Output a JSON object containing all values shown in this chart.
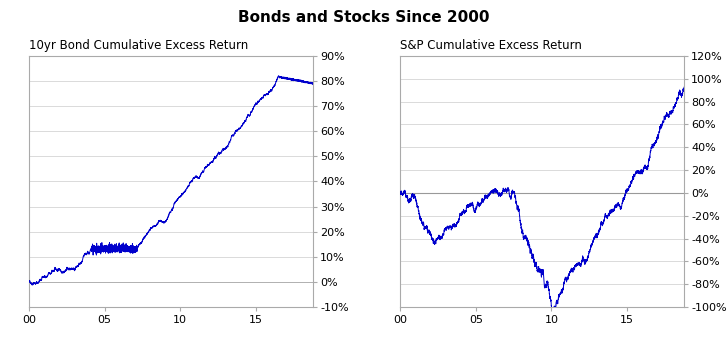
{
  "title": "Bonds and Stocks Since 2000",
  "left_title": "10yr Bond Cumulative Excess Return",
  "right_title": "S&P Cumulative Excess Return",
  "line_color": "#0000CC",
  "background_color": "#FFFFFF",
  "plot_bg_color": "#FFFFFF",
  "left_ylim": [
    -0.1,
    0.9
  ],
  "right_ylim": [
    -1.0,
    1.2
  ],
  "left_yticks": [
    -0.1,
    0.0,
    0.1,
    0.2,
    0.3,
    0.4,
    0.5,
    0.6,
    0.7,
    0.8,
    0.9
  ],
  "right_yticks": [
    -1.0,
    -0.8,
    -0.6,
    -0.4,
    -0.2,
    0.0,
    0.2,
    0.4,
    0.6,
    0.8,
    1.0,
    1.2
  ],
  "xtick_years": [
    2000,
    2005,
    2010,
    2015
  ],
  "xtick_labels": [
    "00",
    "05",
    "10",
    "15"
  ],
  "xlim": [
    2000,
    2018.8
  ],
  "n_points": 4700,
  "seed": 42
}
